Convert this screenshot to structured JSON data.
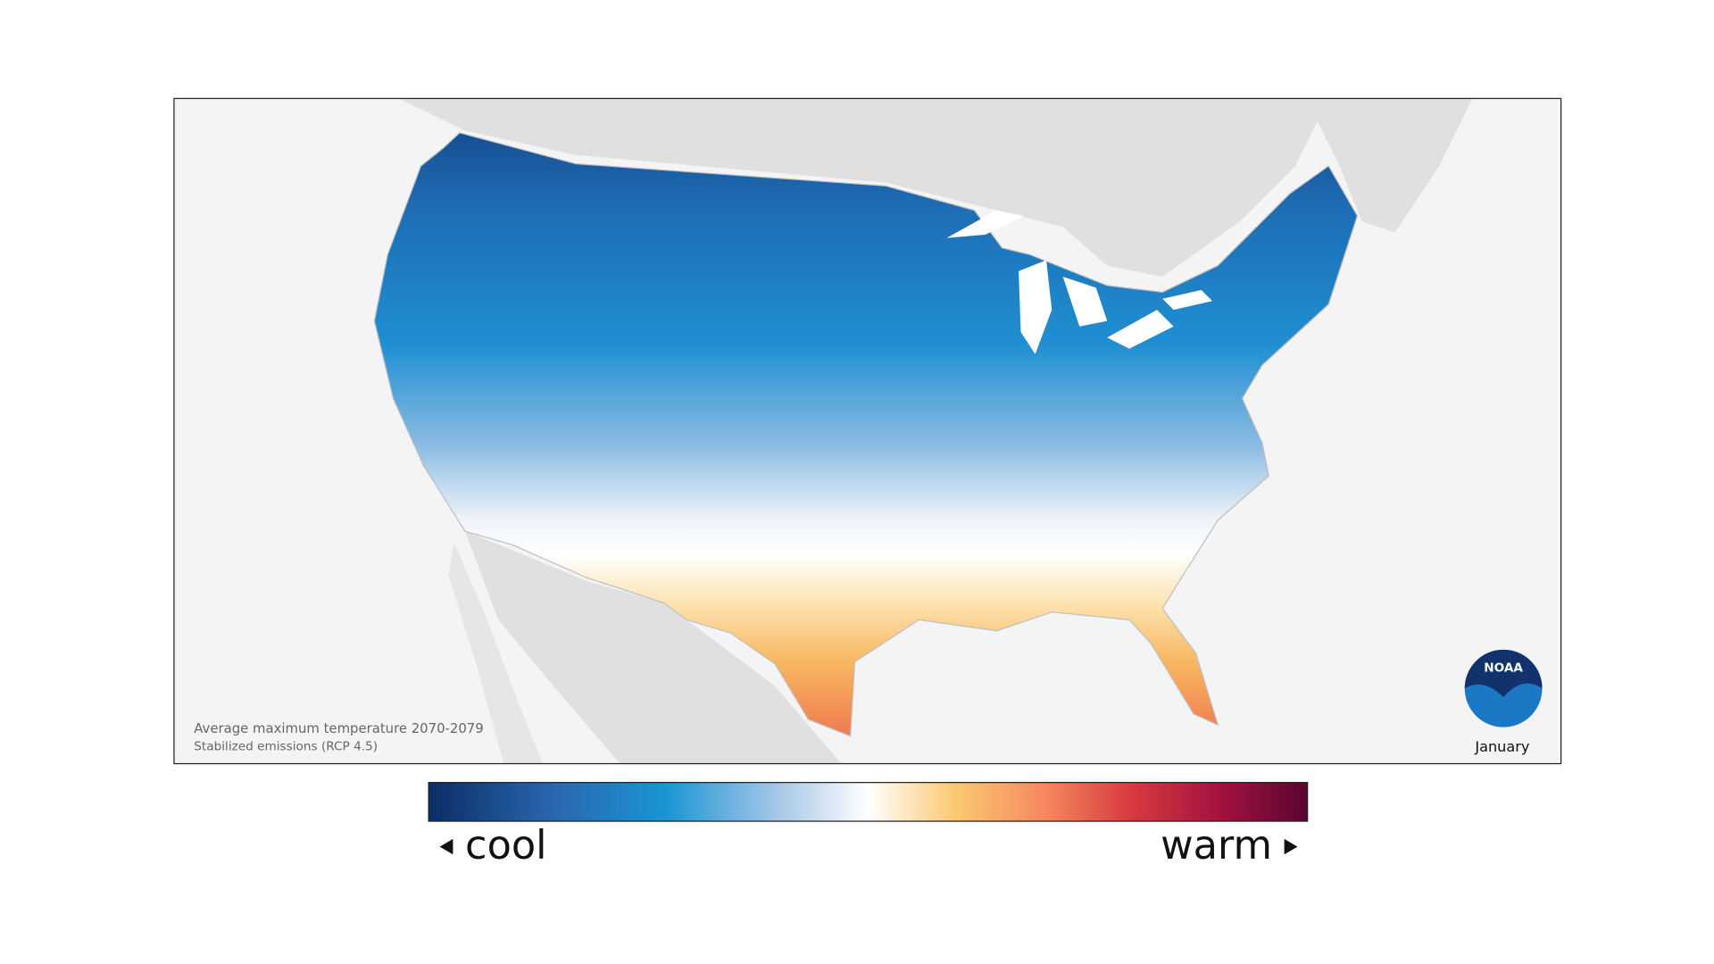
{
  "map": {
    "caption": [
      "Average maximum temperature 2070-2079",
      "Stabilized emissions (RCP 4.5)"
    ],
    "month": "January",
    "logo": "NOAA"
  },
  "legend": {
    "low": "cool",
    "high": "warm"
  }
}
